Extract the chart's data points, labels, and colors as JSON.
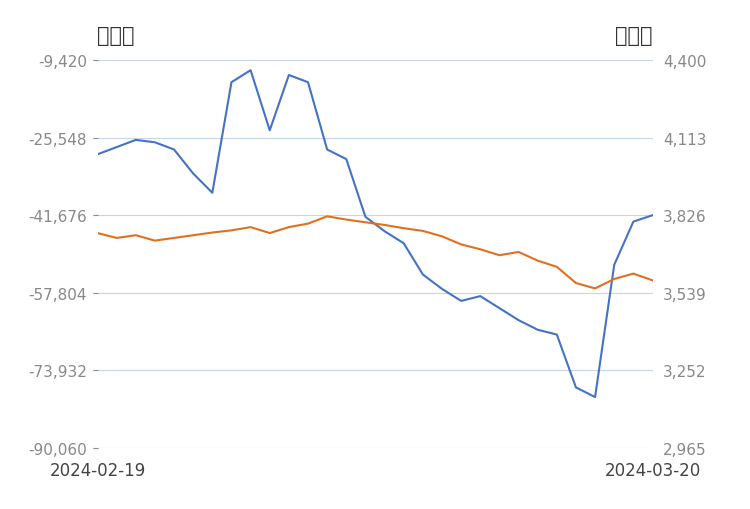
{
  "title_left": "净持仓",
  "title_right": "收盘价",
  "xlabel_left": "2024-02-19",
  "xlabel_right": "2024-03-20",
  "left_yticks": [
    -9420,
    -25548,
    -41676,
    -57804,
    -73932,
    -90060
  ],
  "right_yticks": [
    4400,
    4113,
    3826,
    3539,
    3252,
    2965
  ],
  "left_ylim": [
    -90060,
    -9420
  ],
  "right_ylim": [
    2965,
    4400
  ],
  "background_color": "#ffffff",
  "grid_color": "#c8d4e8",
  "blue_color": "#4472C4",
  "orange_color": "#E07020",
  "title_fontsize": 15,
  "tick_fontsize": 11,
  "blue_y": [
    -29000,
    -27500,
    -26000,
    -26500,
    -28000,
    -33000,
    -37000,
    -14000,
    -11500,
    -24000,
    -12500,
    -14000,
    -28000,
    -30000,
    -42000,
    -45000,
    -47500,
    -54000,
    -57000,
    -59500,
    -58500,
    -61000,
    -63500,
    -65500,
    -66500,
    -77500,
    -79500,
    -52000,
    -43000,
    -41676
  ],
  "orange_y": [
    3760,
    3742,
    3752,
    3732,
    3742,
    3752,
    3762,
    3770,
    3782,
    3760,
    3782,
    3795,
    3822,
    3810,
    3800,
    3790,
    3778,
    3768,
    3748,
    3718,
    3700,
    3678,
    3690,
    3658,
    3635,
    3575,
    3555,
    3590,
    3610,
    3585
  ]
}
